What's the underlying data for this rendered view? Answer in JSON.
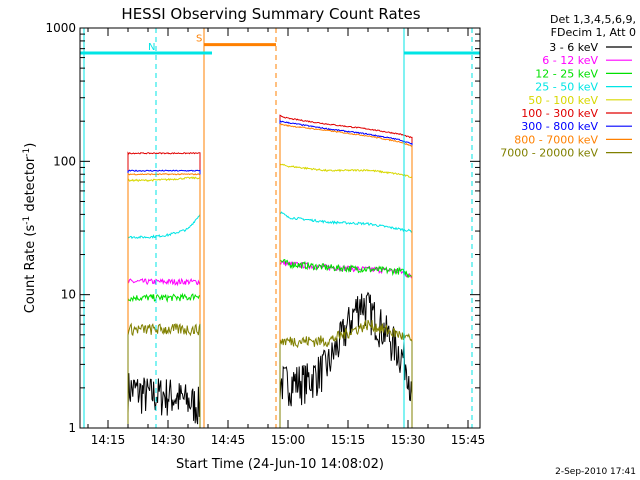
{
  "chart_data": {
    "type": "line",
    "title": "HESSI Observing Summary Count Rates",
    "xlabel": "Start Time (24-Jun-10 14:08:02)",
    "ylabel_parts": [
      "Count Rate (s",
      "-1",
      " detector",
      "-1",
      ")"
    ],
    "y_scale": "log",
    "ylim": [
      1,
      1000
    ],
    "xlim_minutes": [
      "14:08",
      "15:48"
    ],
    "x_ticks": [
      "14:15",
      "14:30",
      "14:45",
      "15:00",
      "15:15",
      "15:30",
      "15:45"
    ],
    "y_ticks": [
      "1",
      "10",
      "100",
      "1000"
    ],
    "grid": false,
    "legend_header": [
      "Det 1,3,4,5,6,9,",
      "FDecim 1, Att 0"
    ],
    "legend_placement": "right",
    "date_stamp": "2-Sep-2010 17:41",
    "flags": [
      {
        "label": "N",
        "color": "#00e5e5",
        "start": "14:08",
        "end": "14:41",
        "level": 650
      },
      {
        "label": "S",
        "color": "#ff8000",
        "start": "14:39",
        "end": "14:57",
        "level": 750
      },
      {
        "label": "",
        "color": "#00e5e5",
        "start": "15:29",
        "end": "15:48",
        "level": 650
      }
    ],
    "markers": [
      {
        "time": "14:09",
        "color": "#00e5e5",
        "style": "solid"
      },
      {
        "time": "14:27",
        "color": "#00e5e5",
        "style": "dashed"
      },
      {
        "time": "14:39",
        "color": "#ff8000",
        "style": "solid"
      },
      {
        "time": "14:57",
        "color": "#ff8000",
        "style": "dashed"
      },
      {
        "time": "15:29",
        "color": "#00e5e5",
        "style": "solid"
      },
      {
        "time": "15:46",
        "color": "#00e5e5",
        "style": "dashed"
      }
    ],
    "series": [
      {
        "name": "3 - 6 keV",
        "color": "#000000",
        "noise": 0.35,
        "segments": [
          {
            "x": [
              "14:20",
              "14:25",
              "14:30",
              "14:35",
              "14:38"
            ],
            "y": [
              2,
              1.8,
              1.8,
              1.6,
              1.5
            ]
          },
          {
            "x": [
              "14:58",
              "15:05",
              "15:10",
              "15:15",
              "15:18",
              "15:20",
              "15:25",
              "15:30",
              "15:31"
            ],
            "y": [
              2.2,
              2.3,
              3,
              6,
              9,
              8,
              5,
              3,
              1.5
            ]
          }
        ]
      },
      {
        "name": "6 - 12 keV",
        "color": "#ff00ff",
        "noise": 0.05,
        "segments": [
          {
            "x": [
              "14:20",
              "14:25",
              "14:30",
              "14:35",
              "14:38"
            ],
            "y": [
              12.5,
              12.5,
              12.5,
              12.5,
              12.5
            ]
          },
          {
            "x": [
              "14:58",
              "15:00",
              "15:10",
              "15:20",
              "15:28",
              "15:31"
            ],
            "y": [
              17.5,
              17,
              16,
              15.5,
              15,
              13.5
            ]
          }
        ]
      },
      {
        "name": "12 - 25 keV",
        "color": "#00e000",
        "noise": 0.06,
        "segments": [
          {
            "x": [
              "14:20",
              "14:25",
              "14:30",
              "14:35",
              "14:38"
            ],
            "y": [
              9.5,
              9.5,
              9.5,
              9.5,
              10
            ]
          },
          {
            "x": [
              "14:58",
              "15:00",
              "15:10",
              "15:20",
              "15:28",
              "15:31"
            ],
            "y": [
              18,
              17,
              16,
              15.5,
              15,
              14
            ]
          }
        ]
      },
      {
        "name": "25 - 50 keV",
        "color": "#00e5e5",
        "noise": 0.02,
        "segments": [
          {
            "x": [
              "14:20",
              "14:25",
              "14:30",
              "14:35",
              "14:38"
            ],
            "y": [
              27,
              27,
              28,
              31,
              40
            ]
          },
          {
            "x": [
              "14:58",
              "15:00",
              "15:10",
              "15:20",
              "15:28",
              "15:31"
            ],
            "y": [
              42,
              38,
              35,
              34,
              31,
              30
            ]
          }
        ]
      },
      {
        "name": "50 - 100 keV",
        "color": "#d8d800",
        "noise": 0.015,
        "segments": [
          {
            "x": [
              "14:20",
              "14:25",
              "14:30",
              "14:35",
              "14:38"
            ],
            "y": [
              72,
              72,
              73,
              75,
              75
            ]
          },
          {
            "x": [
              "14:58",
              "15:00",
              "15:10",
              "15:20",
              "15:28",
              "15:31"
            ],
            "y": [
              95,
              92,
              85,
              86,
              80,
              76
            ]
          }
        ]
      },
      {
        "name": "100 - 300 keV",
        "color": "#e00000",
        "noise": 0.01,
        "segments": [
          {
            "x": [
              "14:20",
              "14:25",
              "14:30",
              "14:35",
              "14:38"
            ],
            "y": [
              115,
              115,
              115,
              115,
              115
            ]
          },
          {
            "x": [
              "14:58",
              "15:00",
              "15:10",
              "15:20",
              "15:28",
              "15:31"
            ],
            "y": [
              220,
              210,
              190,
              175,
              160,
              150
            ]
          }
        ]
      },
      {
        "name": "300 - 800 keV",
        "color": "#0000ff",
        "noise": 0.01,
        "segments": [
          {
            "x": [
              "14:20",
              "14:25",
              "14:30",
              "14:35",
              "14:38"
            ],
            "y": [
              85,
              85,
              85,
              85,
              85
            ]
          },
          {
            "x": [
              "14:58",
              "15:00",
              "15:10",
              "15:20",
              "15:28",
              "15:31"
            ],
            "y": [
              200,
              195,
              175,
              160,
              145,
              135
            ]
          }
        ]
      },
      {
        "name": "800 - 7000 keV",
        "color": "#ff8000",
        "noise": 0.01,
        "segments": [
          {
            "x": [
              "14:20",
              "14:25",
              "14:30",
              "14:35",
              "14:38"
            ],
            "y": [
              80,
              80,
              80,
              80,
              80
            ]
          },
          {
            "x": [
              "14:58",
              "15:00",
              "15:10",
              "15:20",
              "15:28",
              "15:31"
            ],
            "y": [
              190,
              185,
              170,
              155,
              140,
              130
            ]
          }
        ]
      },
      {
        "name": "7000 - 20000 keV",
        "color": "#808000",
        "noise": 0.1,
        "segments": [
          {
            "x": [
              "14:20",
              "14:25",
              "14:30",
              "14:35",
              "14:38"
            ],
            "y": [
              5.5,
              5.5,
              5.5,
              5.5,
              5.5
            ]
          },
          {
            "x": [
              "14:58",
              "15:00",
              "15:10",
              "15:20",
              "15:28",
              "15:31"
            ],
            "y": [
              4.5,
              4.5,
              4.5,
              6,
              5,
              4.5
            ]
          }
        ]
      }
    ]
  }
}
